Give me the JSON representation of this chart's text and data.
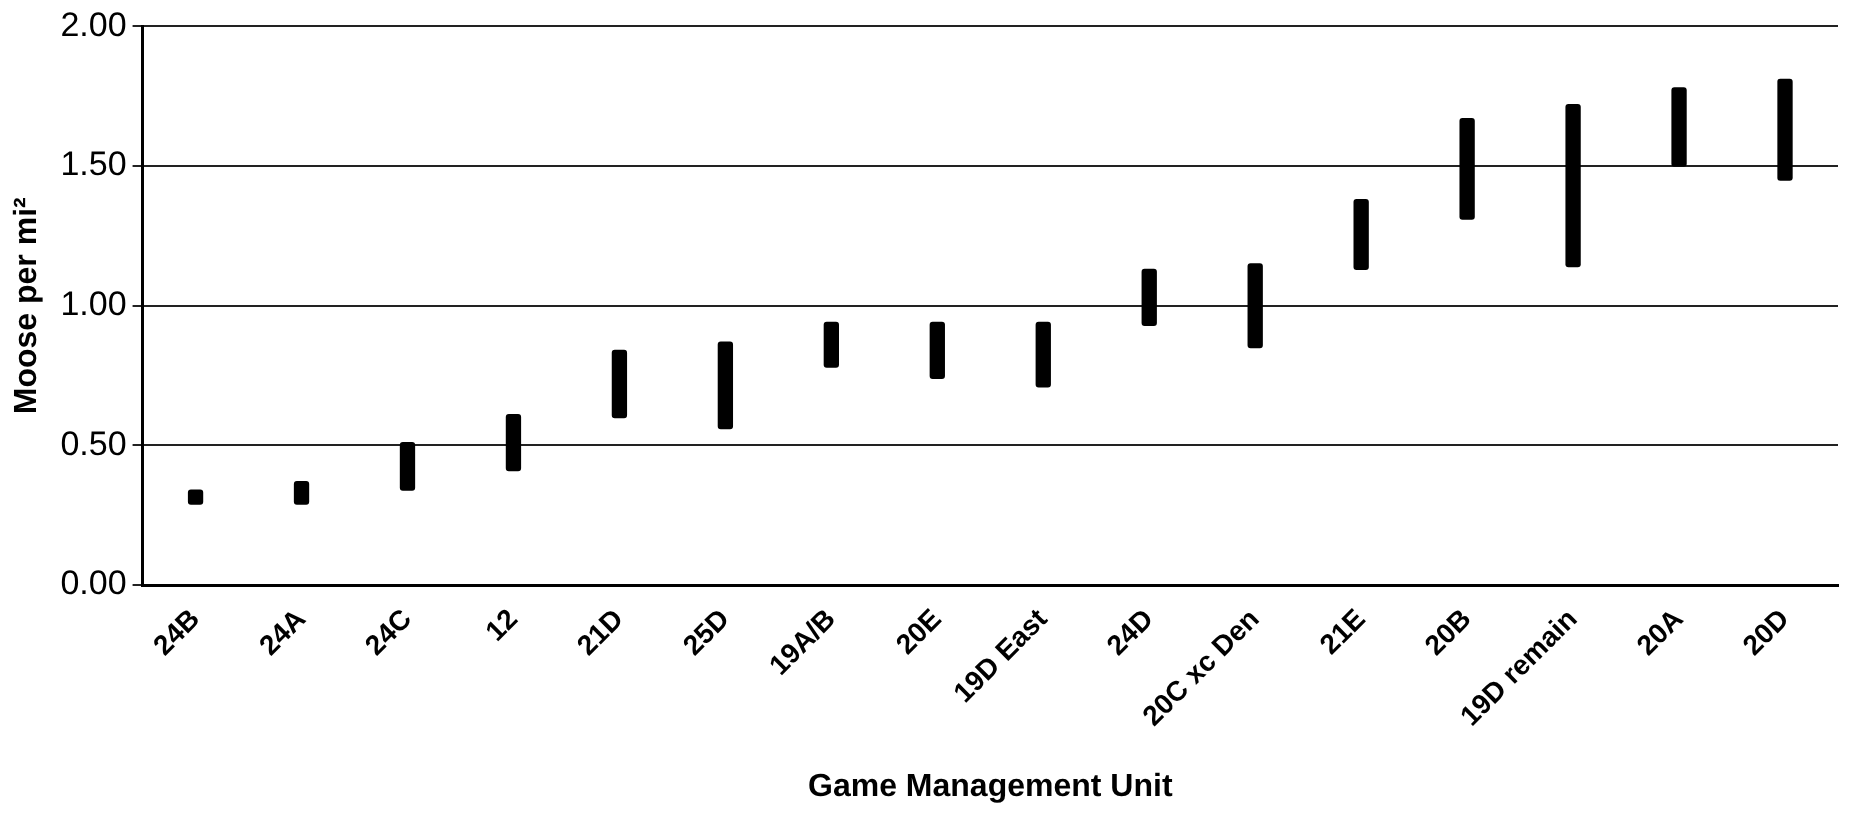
{
  "chart_data": {
    "type": "bar",
    "xlabel": "Game Management Unit",
    "ylabel": "Moose per mi²",
    "categories": [
      "24B",
      "24A",
      "24C",
      "12",
      "21D",
      "25D",
      "19A/B",
      "20E",
      "19D East",
      "24D",
      "20C xc Den",
      "21E",
      "20B",
      "19D remain",
      "20A",
      "20D"
    ],
    "base": [
      0.29,
      0.29,
      0.34,
      0.41,
      0.6,
      0.56,
      0.78,
      0.74,
      0.71,
      0.93,
      0.85,
      1.13,
      1.31,
      1.14,
      1.5,
      1.45
    ],
    "values": [
      0.05,
      0.08,
      0.17,
      0.2,
      0.24,
      0.31,
      0.16,
      0.2,
      0.23,
      0.2,
      0.3,
      0.25,
      0.36,
      0.58,
      0.28,
      0.36
    ],
    "color": "#000000",
    "ylim": [
      0,
      2
    ],
    "yticks": [
      {
        "value": 0,
        "label": "0.00"
      },
      {
        "value": 0.5,
        "label": "0.50"
      },
      {
        "value": 1,
        "label": "1.00"
      },
      {
        "value": 1.5,
        "label": "1.50"
      },
      {
        "value": 2,
        "label": "2.00"
      }
    ],
    "grid": "y",
    "legend": false
  }
}
